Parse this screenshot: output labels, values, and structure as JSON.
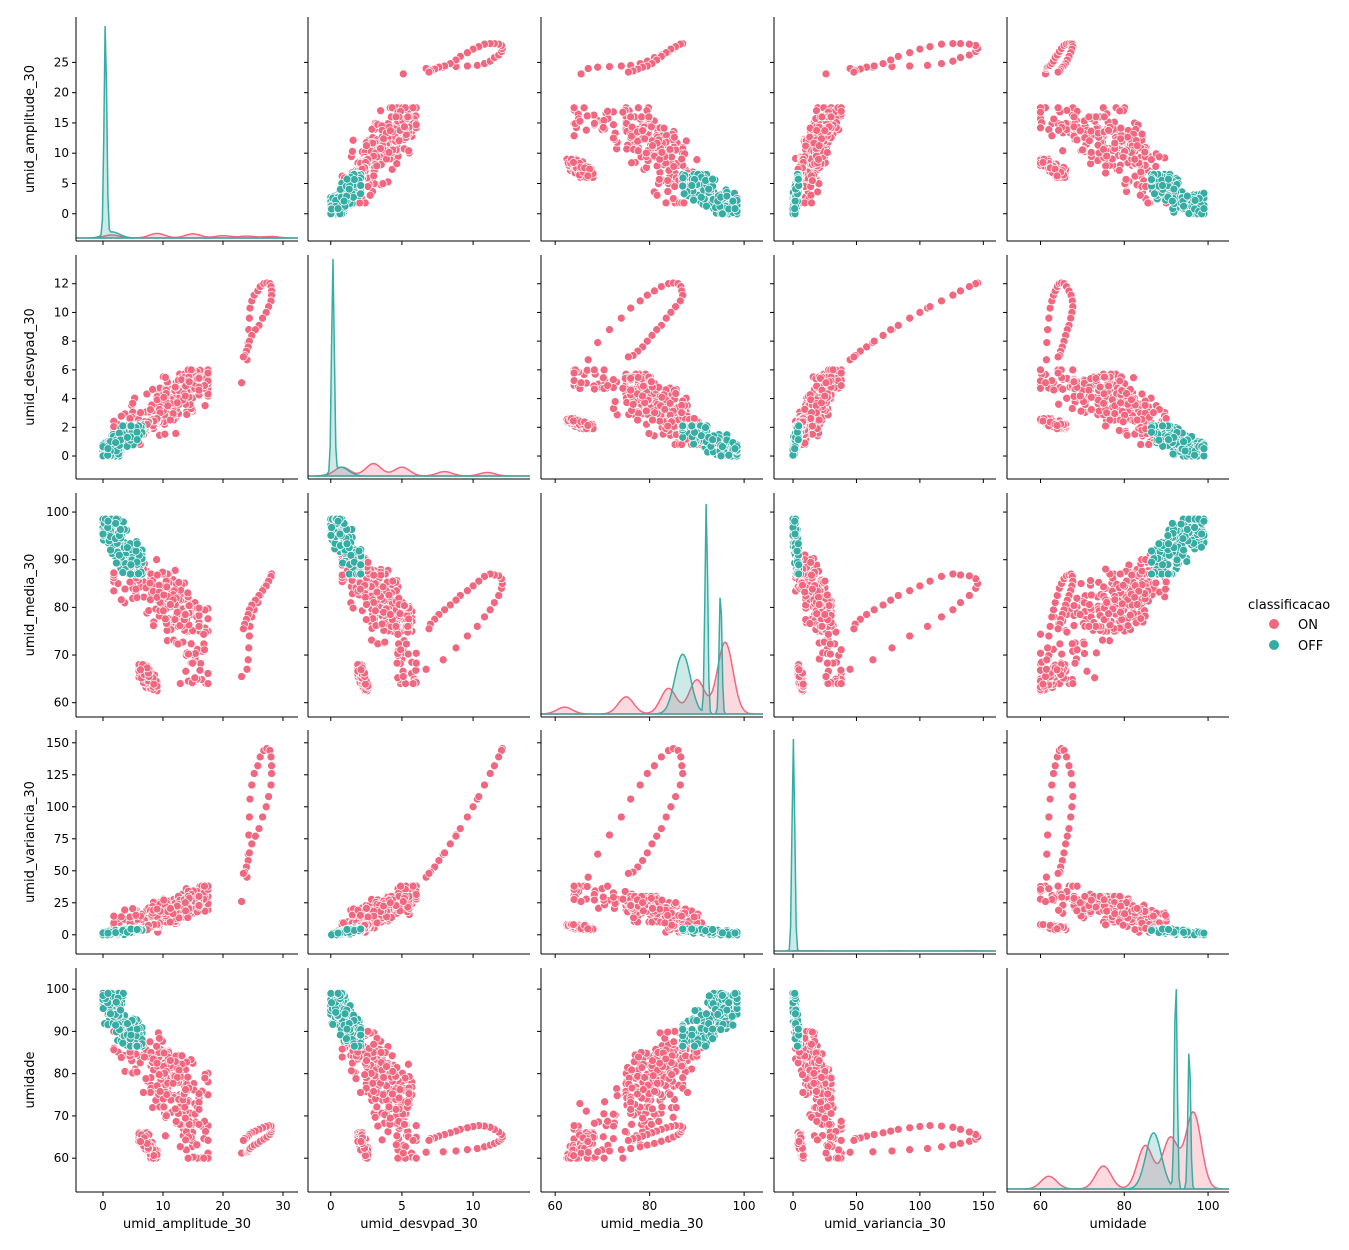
{
  "chart_data": {
    "type": "scatter",
    "variables": [
      "umid_amplitude_30",
      "umid_desvpad_30",
      "umid_media_30",
      "umid_variancia_30",
      "umidade"
    ],
    "axis_labels": {
      "umid_amplitude_30": "umid_amplitude_30",
      "umid_desvpad_30": "umid_desvpad_30",
      "umid_media_30": "umid_media_30",
      "umid_variancia_30": "umid_variancia_30",
      "umidade": "umidade"
    },
    "axes": {
      "umid_amplitude_30": {
        "range": [
          -4.5,
          32.5
        ],
        "ticks": [
          0,
          5,
          10,
          15,
          20,
          25
        ]
      },
      "umid_desvpad_30": {
        "range": [
          -1.6,
          14.0
        ],
        "ticks": [
          0,
          2,
          4,
          6,
          8,
          10,
          12
        ]
      },
      "umid_media_30": {
        "range": [
          57,
          104
        ],
        "ticks": [
          60,
          70,
          80,
          90,
          100
        ]
      },
      "umid_variancia_30": {
        "range": [
          -15,
          160
        ],
        "ticks": [
          0,
          25,
          50,
          75,
          100,
          125,
          150
        ]
      },
      "umidade": {
        "range": [
          52,
          105
        ],
        "ticks": [
          60,
          70,
          80,
          90,
          100
        ]
      }
    },
    "x_ticks": {
      "umid_amplitude_30": [
        0,
        10,
        20,
        30
      ],
      "umid_desvpad_30": [
        0,
        5,
        10
      ],
      "umid_media_30": [
        60,
        80,
        100
      ],
      "umid_variancia_30": [
        0,
        50,
        100,
        150
      ],
      "umidade": [
        60,
        80,
        100
      ]
    },
    "legend": {
      "title": "classificacao",
      "placement": "right",
      "entries": [
        "ON",
        "OFF"
      ]
    },
    "series": [
      {
        "name": "ON",
        "color": "#f0677f",
        "clusters": [
          {
            "umid_amplitude_30": [
              1.8,
              17.5
            ],
            "umid_desvpad_30": [
              0.8,
              5.7
            ],
            "umid_media_30": [
              75,
              91
            ],
            "umid_variancia_30": [
              2,
              30
            ],
            "umidade": [
              75,
              90
            ]
          },
          {
            "umid_amplitude_30": [
              8,
              17.5
            ],
            "umid_desvpad_30": [
              2.5,
              6.0
            ],
            "umid_media_30": [
              64,
              87
            ],
            "umid_variancia_30": [
              10,
              38
            ],
            "umidade": [
              60,
              85
            ]
          },
          {
            "umid_amplitude_30": [
              4.5,
              16
            ],
            "umid_desvpad_30": [
              1.5,
              5.5
            ],
            "umid_media_30": [
              76,
              90
            ],
            "umid_variancia_30": [
              5,
              30
            ],
            "umidade": [
              68,
              90
            ]
          },
          {
            "umid_amplitude_30": [
              6,
              9
            ],
            "umid_desvpad_30": [
              1.9,
              2.6
            ],
            "umid_media_30": [
              62.5,
              68
            ],
            "umid_variancia_30": [
              4,
              8
            ],
            "umidade": [
              60,
              66
            ]
          }
        ],
        "arc": {
          "umid_amplitude_30": [
            23.1,
            24.0,
            24.2,
            24.3,
            24.4,
            24.5,
            24.8,
            25.2,
            25.8,
            26.2,
            26.8,
            27.3,
            27.8,
            28.0,
            28.1,
            28.1,
            28.0,
            27.6,
            27.2,
            26.6,
            26.0,
            25.4,
            24.8,
            24.4,
            24.2,
            23.9,
            23.6,
            23.4
          ],
          "umid_desvpad_30": [
            5.1,
            6.7,
            7.9,
            8.8,
            9.6,
            10.3,
            10.8,
            11.2,
            11.5,
            11.8,
            12.0,
            12.05,
            12.0,
            11.8,
            11.5,
            11.2,
            10.8,
            10.4,
            10.0,
            9.6,
            9.1,
            8.8,
            8.4,
            8.0,
            7.6,
            7.3,
            7.0,
            6.9
          ],
          "umid_media_30": [
            65.5,
            67.0,
            69.0,
            71.5,
            74.0,
            76.0,
            78.0,
            79.5,
            81.0,
            82.5,
            84.0,
            85.0,
            86.0,
            86.6,
            86.8,
            87.0,
            86.5,
            85.5,
            84.5,
            83.5,
            82.5,
            81.5,
            80.5,
            79.5,
            78.5,
            77.5,
            76.5,
            75.5
          ],
          "umid_variancia_30": [
            26,
            45,
            63,
            78,
            92,
            106,
            117,
            126,
            132,
            139,
            144,
            145.5,
            144,
            139,
            132,
            126,
            117,
            108,
            100,
            92,
            83,
            77,
            71,
            64,
            58,
            53,
            49,
            48
          ],
          "umidade": [
            61.2,
            61.4,
            61.5,
            61.7,
            62.0,
            62.3,
            62.7,
            63.1,
            63.5,
            64.0,
            64.5,
            65.0,
            65.6,
            66.2,
            66.8,
            67.3,
            67.6,
            67.7,
            67.5,
            67.2,
            66.8,
            66.4,
            66.0,
            65.6,
            65.2,
            64.8,
            64.6,
            64.2
          ]
        }
      },
      {
        "name": "OFF",
        "color": "#36ada4",
        "clusters": [
          {
            "umid_amplitude_30": [
              0,
              6.5
            ],
            "umid_desvpad_30": [
              0,
              2.1
            ],
            "umid_media_30": [
              87,
              98.5
            ],
            "umid_variancia_30": [
              0,
              4.5
            ],
            "umidade": [
              86.5,
              99
            ]
          }
        ]
      }
    ],
    "density": {
      "umid_amplitude_30": {
        "ON": {
          "peaks": [
            [
              1.5,
              0.4
            ],
            [
              9,
              0.6
            ],
            [
              15,
              0.55
            ],
            [
              20,
              0.3
            ],
            [
              24,
              0.25
            ],
            [
              28,
              0.2
            ]
          ]
        },
        "OFF": {
          "peaks": [
            [
              0.4,
              28
            ],
            [
              1.5,
              0.8
            ]
          ]
        }
      },
      "umid_desvpad_30": {
        "ON": {
          "peaks": [
            [
              0.8,
              0.5
            ],
            [
              3,
              0.7
            ],
            [
              5,
              0.5
            ],
            [
              8,
              0.25
            ],
            [
              11,
              0.2
            ]
          ]
        },
        "OFF": {
          "peaks": [
            [
              0.15,
              12
            ],
            [
              0.7,
              0.5
            ]
          ]
        }
      },
      "umid_media_30": {
        "ON": {
          "peaks": [
            [
              62,
              0.4
            ],
            [
              75,
              1.0
            ],
            [
              84,
              1.5
            ],
            [
              90,
              2.0
            ],
            [
              96,
              4.2
            ]
          ]
        },
        "OFF": {
          "peaks": [
            [
              87,
              3.5
            ],
            [
              92,
              12.4
            ],
            [
              95,
              7.3
            ]
          ]
        }
      },
      "umid_variancia_30": {
        "ON": {
          "peaks": [
            [
              5,
              0.15
            ],
            [
              20,
              0.15
            ],
            [
              80,
              0.15
            ],
            [
              140,
              0.15
            ]
          ]
        },
        "OFF": {
          "peaks": [
            [
              0.3,
              146
            ]
          ]
        }
      },
      "umidade": {
        "ON": {
          "peaks": [
            [
              62,
              0.5
            ],
            [
              75,
              0.9
            ],
            [
              85,
              1.7
            ],
            [
              91,
              2.0
            ],
            [
              96.5,
              3.0
            ]
          ]
        },
        "OFF": {
          "peaks": [
            [
              87,
              2.2
            ],
            [
              92.3,
              8.3
            ],
            [
              95.5,
              5.6
            ]
          ]
        }
      }
    }
  }
}
